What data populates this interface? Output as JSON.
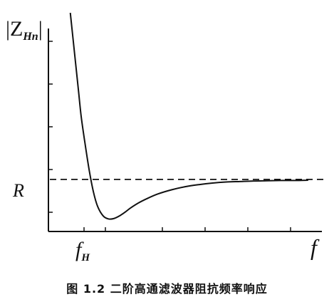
{
  "chart_data": {
    "type": "line",
    "ylabel_main": "|Z",
    "ylabel_sub": "Hn",
    "ylabel_end": "|",
    "reference_label": "R",
    "xtick_label_main": "f",
    "xtick_label_sub": "H",
    "xlabel": "f",
    "caption": "图 1.2   二阶高通滤波器阻抗频率响应",
    "reference_value": 1.0,
    "ylim": [
      0,
      4.2
    ],
    "xlim": [
      0,
      10
    ],
    "series": [
      {
        "x": [
          0.8,
          0.9,
          1.0,
          1.1,
          1.2,
          1.35,
          1.5,
          1.65,
          1.8,
          2.0,
          2.2,
          2.4,
          2.6,
          2.8,
          3.0,
          3.3,
          3.6,
          4.0,
          4.5,
          5.0,
          5.5,
          6.0,
          6.5,
          7.0,
          7.5,
          8.0,
          8.5,
          9.0,
          9.5
        ],
        "y": [
          4.2,
          3.7,
          3.2,
          2.7,
          2.2,
          1.65,
          1.15,
          0.75,
          0.48,
          0.3,
          0.24,
          0.25,
          0.3,
          0.37,
          0.45,
          0.55,
          0.63,
          0.72,
          0.8,
          0.86,
          0.9,
          0.93,
          0.95,
          0.96,
          0.97,
          0.975,
          0.98,
          0.98,
          0.985
        ]
      }
    ]
  }
}
